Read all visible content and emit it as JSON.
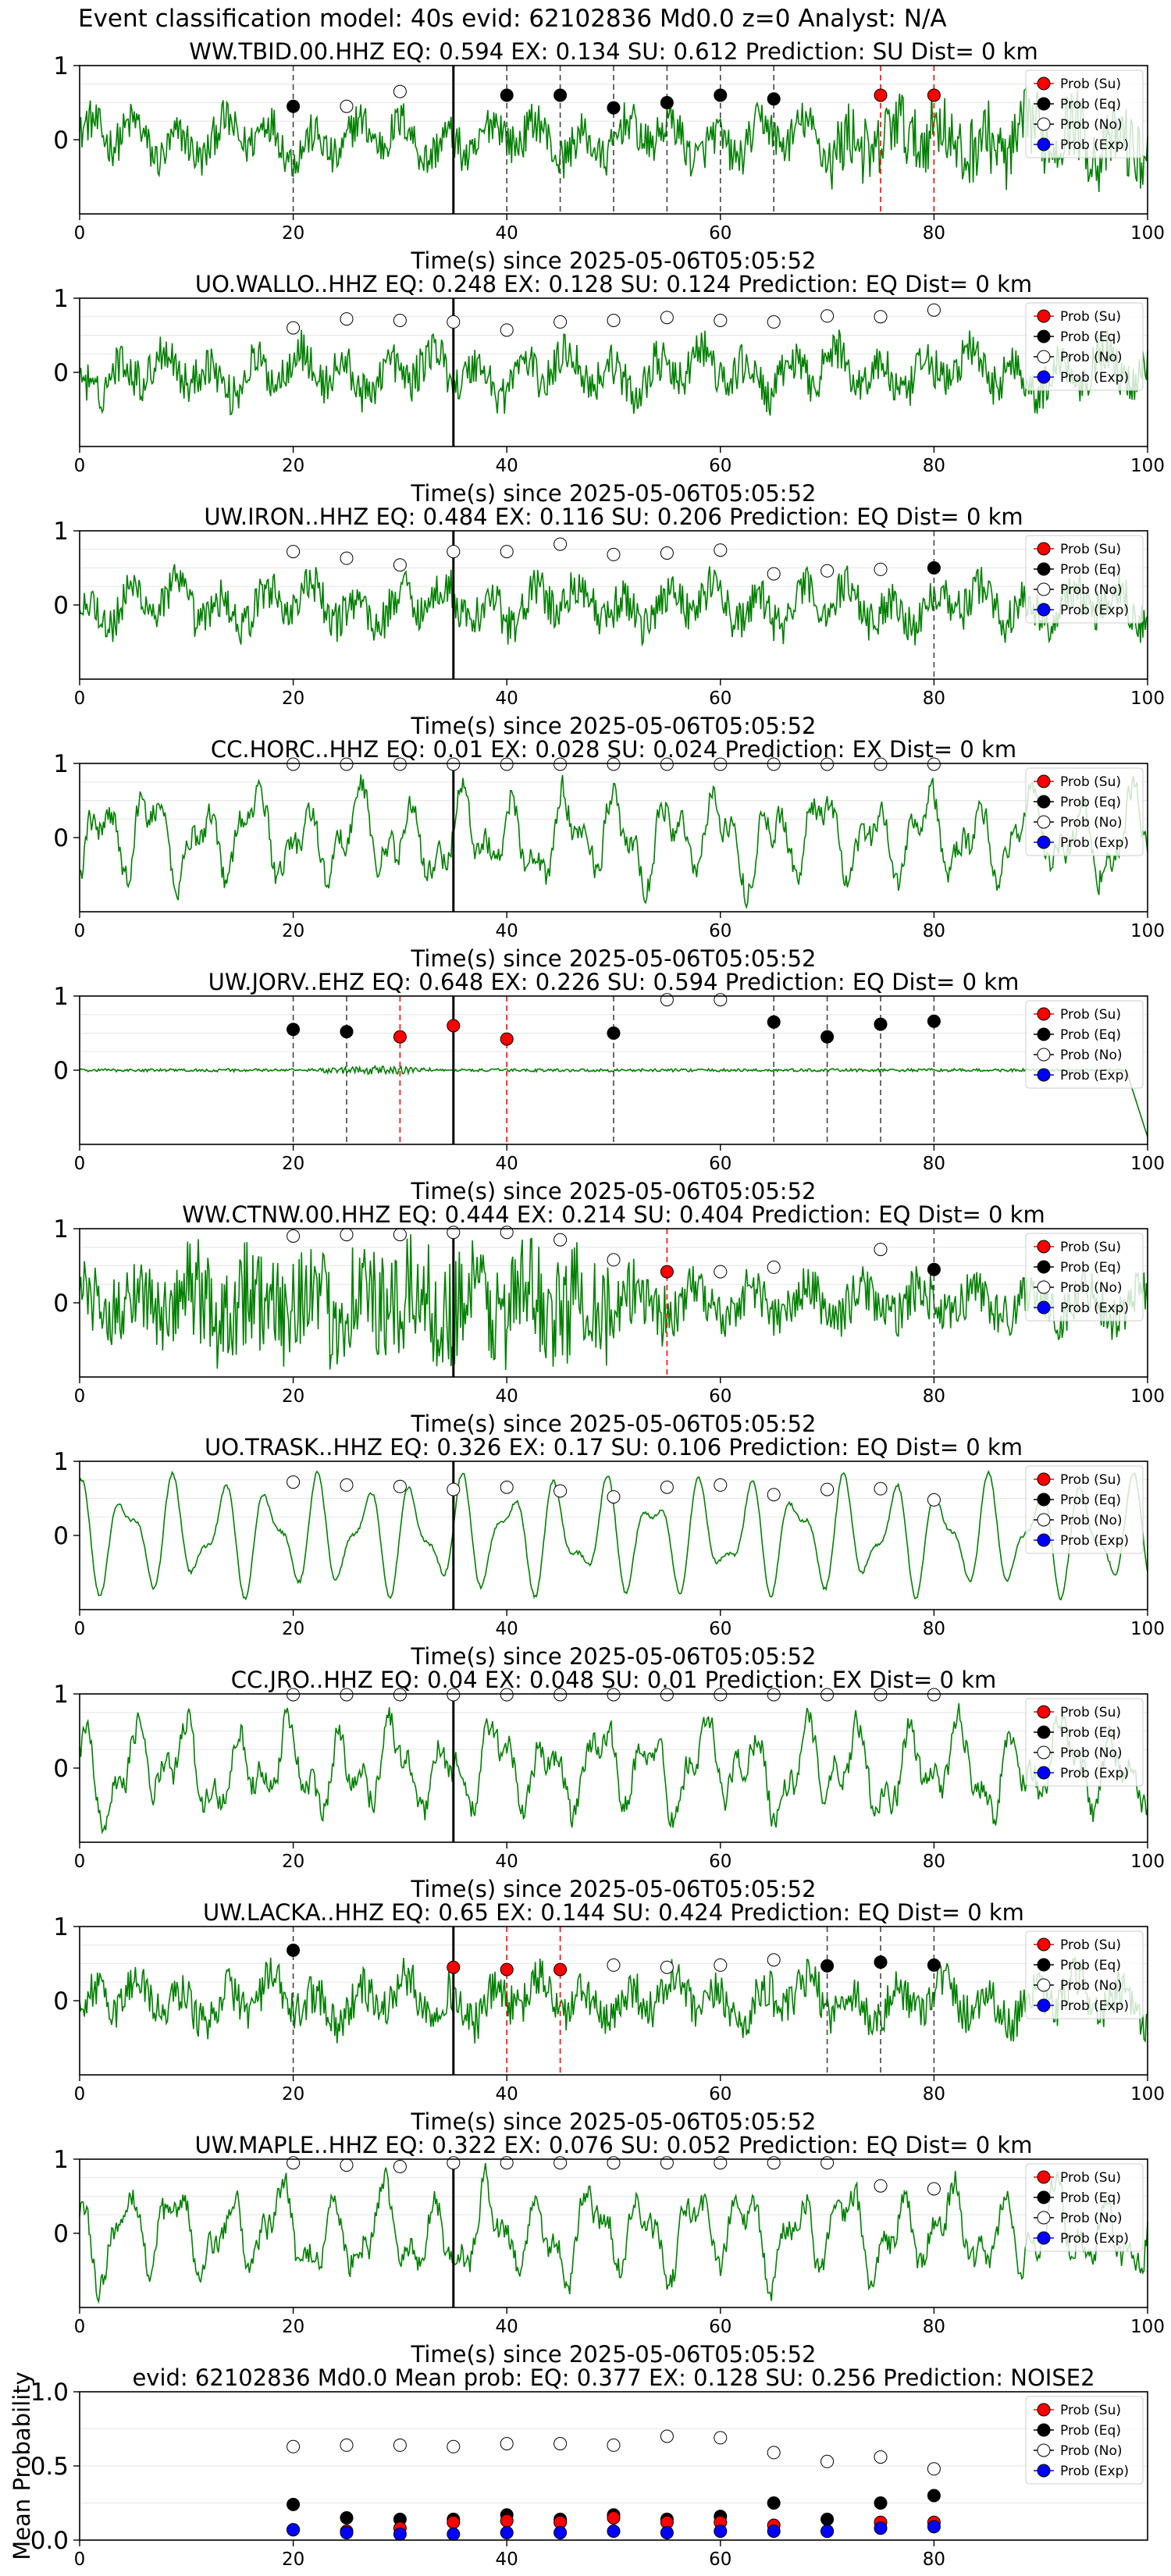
{
  "figure": {
    "title": "Event classification model: 40s evid: 62102836 Md0.0 z=0 Analyst: N/A",
    "xlabel": "Time(s) since 2025-05-06T05:05:52",
    "ylabel_mean": "Mean Probability",
    "legend": [
      "Prob (Su)",
      "Prob (Eq)",
      "Prob (No)",
      "Prob (Exp)"
    ],
    "colors": {
      "trace": "#008000",
      "su": "#ff0000",
      "eq": "#000000",
      "no": "#ffffff",
      "exp": "#0000ff",
      "pick": "#000000"
    }
  },
  "chart_data": [
    {
      "type": "line",
      "title": "WW.TBID.00.HHZ    EQ: 0.594   EX: 0.134   SU: 0.612    Prediction: SU     Dist= 0 km",
      "xlim": [
        0,
        100
      ],
      "ylim": [
        -1,
        1
      ],
      "xticks": [
        0,
        20,
        40,
        60,
        80,
        100
      ],
      "yticks": [
        0,
        1
      ],
      "pick_time": 35,
      "dots": [
        {
          "t": 20,
          "p": 0.45,
          "c": "eq"
        },
        {
          "t": 25,
          "p": 0.45,
          "c": "no"
        },
        {
          "t": 30,
          "p": 0.65,
          "c": "no"
        },
        {
          "t": 40,
          "p": 0.6,
          "c": "eq"
        },
        {
          "t": 45,
          "p": 0.6,
          "c": "eq"
        },
        {
          "t": 50,
          "p": 0.43,
          "c": "eq"
        },
        {
          "t": 55,
          "p": 0.5,
          "c": "eq"
        },
        {
          "t": 60,
          "p": 0.6,
          "c": "eq"
        },
        {
          "t": 65,
          "p": 0.55,
          "c": "eq"
        },
        {
          "t": 75,
          "p": 0.6,
          "c": "su"
        },
        {
          "t": 80,
          "p": 0.6,
          "c": "su"
        }
      ],
      "vlines": [
        {
          "t": 20,
          "c": "eq"
        },
        {
          "t": 40,
          "c": "eq"
        },
        {
          "t": 45,
          "c": "eq"
        },
        {
          "t": 50,
          "c": "eq"
        },
        {
          "t": 55,
          "c": "eq"
        },
        {
          "t": 60,
          "c": "eq"
        },
        {
          "t": 65,
          "c": "eq"
        },
        {
          "t": 75,
          "c": "su"
        },
        {
          "t": 80,
          "c": "su"
        }
      ]
    },
    {
      "type": "line",
      "title": "UO.WALLO..HHZ   EQ: 0.248   EX: 0.128   SU: 0.124    Prediction: EQ     Dist= 0 km",
      "xlim": [
        0,
        100
      ],
      "ylim": [
        -1,
        1
      ],
      "xticks": [
        0,
        20,
        40,
        60,
        80,
        100
      ],
      "yticks": [
        0,
        1
      ],
      "pick_time": 35,
      "dots": [
        {
          "t": 20,
          "p": 0.6,
          "c": "no"
        },
        {
          "t": 25,
          "p": 0.72,
          "c": "no"
        },
        {
          "t": 30,
          "p": 0.7,
          "c": "no"
        },
        {
          "t": 35,
          "p": 0.68,
          "c": "no"
        },
        {
          "t": 40,
          "p": 0.57,
          "c": "no"
        },
        {
          "t": 45,
          "p": 0.68,
          "c": "no"
        },
        {
          "t": 50,
          "p": 0.7,
          "c": "no"
        },
        {
          "t": 55,
          "p": 0.74,
          "c": "no"
        },
        {
          "t": 60,
          "p": 0.7,
          "c": "no"
        },
        {
          "t": 65,
          "p": 0.68,
          "c": "no"
        },
        {
          "t": 70,
          "p": 0.76,
          "c": "no"
        },
        {
          "t": 75,
          "p": 0.75,
          "c": "no"
        },
        {
          "t": 80,
          "p": 0.84,
          "c": "no"
        }
      ],
      "vlines": []
    },
    {
      "type": "line",
      "title": "UW.IRON..HHZ   EQ: 0.484   EX: 0.116   SU: 0.206    Prediction: EQ     Dist= 0 km",
      "xlim": [
        0,
        100
      ],
      "ylim": [
        -1,
        1
      ],
      "xticks": [
        0,
        20,
        40,
        60,
        80,
        100
      ],
      "yticks": [
        0,
        1
      ],
      "pick_time": 35,
      "dots": [
        {
          "t": 20,
          "p": 0.72,
          "c": "no"
        },
        {
          "t": 25,
          "p": 0.63,
          "c": "no"
        },
        {
          "t": 30,
          "p": 0.54,
          "c": "no"
        },
        {
          "t": 35,
          "p": 0.72,
          "c": "no"
        },
        {
          "t": 40,
          "p": 0.72,
          "c": "no"
        },
        {
          "t": 45,
          "p": 0.82,
          "c": "no"
        },
        {
          "t": 50,
          "p": 0.68,
          "c": "no"
        },
        {
          "t": 55,
          "p": 0.7,
          "c": "no"
        },
        {
          "t": 60,
          "p": 0.74,
          "c": "no"
        },
        {
          "t": 65,
          "p": 0.42,
          "c": "no"
        },
        {
          "t": 70,
          "p": 0.46,
          "c": "no"
        },
        {
          "t": 75,
          "p": 0.48,
          "c": "no"
        },
        {
          "t": 80,
          "p": 0.5,
          "c": "eq"
        }
      ],
      "vlines": [
        {
          "t": 80,
          "c": "eq"
        }
      ]
    },
    {
      "type": "line",
      "title": "CC.HORC..HHZ   EQ: 0.01  EX: 0.028  SU: 0.024    Prediction: EX     Dist= 0 km",
      "xlim": [
        0,
        100
      ],
      "ylim": [
        -1,
        1
      ],
      "xticks": [
        0,
        20,
        40,
        60,
        80,
        100
      ],
      "yticks": [
        0,
        1
      ],
      "pick_time": 35,
      "dots": [
        {
          "t": 20,
          "p": 0.99,
          "c": "no"
        },
        {
          "t": 25,
          "p": 0.99,
          "c": "no"
        },
        {
          "t": 30,
          "p": 0.99,
          "c": "no"
        },
        {
          "t": 35,
          "p": 0.99,
          "c": "no"
        },
        {
          "t": 40,
          "p": 0.99,
          "c": "no"
        },
        {
          "t": 45,
          "p": 0.99,
          "c": "no"
        },
        {
          "t": 50,
          "p": 0.99,
          "c": "no"
        },
        {
          "t": 55,
          "p": 0.99,
          "c": "no"
        },
        {
          "t": 60,
          "p": 0.99,
          "c": "no"
        },
        {
          "t": 65,
          "p": 0.99,
          "c": "no"
        },
        {
          "t": 70,
          "p": 0.99,
          "c": "no"
        },
        {
          "t": 75,
          "p": 0.99,
          "c": "no"
        },
        {
          "t": 80,
          "p": 0.99,
          "c": "no"
        }
      ],
      "vlines": []
    },
    {
      "type": "line",
      "title": "UW.JORV..EHZ   EQ: 0.648  EX: 0.226  SU: 0.594    Prediction: EQ     Dist= 0 km",
      "xlim": [
        0,
        100
      ],
      "ylim": [
        -1,
        1
      ],
      "xticks": [
        0,
        20,
        40,
        60,
        80,
        100
      ],
      "yticks": [
        0,
        1
      ],
      "pick_time": 35,
      "dots": [
        {
          "t": 20,
          "p": 0.55,
          "c": "eq"
        },
        {
          "t": 25,
          "p": 0.52,
          "c": "eq"
        },
        {
          "t": 30,
          "p": 0.45,
          "c": "su"
        },
        {
          "t": 35,
          "p": 0.6,
          "c": "su"
        },
        {
          "t": 40,
          "p": 0.42,
          "c": "su"
        },
        {
          "t": 50,
          "p": 0.5,
          "c": "eq"
        },
        {
          "t": 55,
          "p": 0.95,
          "c": "no"
        },
        {
          "t": 60,
          "p": 0.95,
          "c": "no"
        },
        {
          "t": 65,
          "p": 0.65,
          "c": "eq"
        },
        {
          "t": 70,
          "p": 0.45,
          "c": "eq"
        },
        {
          "t": 75,
          "p": 0.62,
          "c": "eq"
        },
        {
          "t": 80,
          "p": 0.66,
          "c": "eq"
        }
      ],
      "vlines": [
        {
          "t": 20,
          "c": "eq"
        },
        {
          "t": 25,
          "c": "eq"
        },
        {
          "t": 30,
          "c": "su"
        },
        {
          "t": 40,
          "c": "su"
        },
        {
          "t": 50,
          "c": "eq"
        },
        {
          "t": 65,
          "c": "eq"
        },
        {
          "t": 70,
          "c": "eq"
        },
        {
          "t": 75,
          "c": "eq"
        },
        {
          "t": 80,
          "c": "eq"
        }
      ]
    },
    {
      "type": "line",
      "title": "WW.CTNW.00.HHZ   EQ: 0.444  EX: 0.214  SU: 0.404    Prediction: EQ     Dist= 0 km",
      "xlim": [
        0,
        100
      ],
      "ylim": [
        -1,
        1
      ],
      "xticks": [
        0,
        20,
        40,
        60,
        80,
        100
      ],
      "yticks": [
        0,
        1
      ],
      "pick_time": 35,
      "dots": [
        {
          "t": 20,
          "p": 0.9,
          "c": "no"
        },
        {
          "t": 25,
          "p": 0.92,
          "c": "no"
        },
        {
          "t": 30,
          "p": 0.92,
          "c": "no"
        },
        {
          "t": 35,
          "p": 0.95,
          "c": "no"
        },
        {
          "t": 40,
          "p": 0.95,
          "c": "no"
        },
        {
          "t": 45,
          "p": 0.85,
          "c": "no"
        },
        {
          "t": 50,
          "p": 0.58,
          "c": "no"
        },
        {
          "t": 55,
          "p": 0.42,
          "c": "su"
        },
        {
          "t": 60,
          "p": 0.42,
          "c": "no"
        },
        {
          "t": 65,
          "p": 0.48,
          "c": "no"
        },
        {
          "t": 75,
          "p": 0.72,
          "c": "no"
        },
        {
          "t": 80,
          "p": 0.45,
          "c": "eq"
        }
      ],
      "vlines": [
        {
          "t": 55,
          "c": "su"
        },
        {
          "t": 80,
          "c": "eq"
        }
      ]
    },
    {
      "type": "line",
      "title": "UO.TRASK..HHZ   EQ: 0.326  EX: 0.17  SU: 0.106    Prediction: EQ     Dist= 0 km",
      "xlim": [
        0,
        100
      ],
      "ylim": [
        -1,
        1
      ],
      "xticks": [
        0,
        20,
        40,
        60,
        80,
        100
      ],
      "yticks": [
        0,
        1
      ],
      "pick_time": 35,
      "dots": [
        {
          "t": 20,
          "p": 0.72,
          "c": "no"
        },
        {
          "t": 25,
          "p": 0.68,
          "c": "no"
        },
        {
          "t": 30,
          "p": 0.66,
          "c": "no"
        },
        {
          "t": 35,
          "p": 0.62,
          "c": "no"
        },
        {
          "t": 40,
          "p": 0.65,
          "c": "no"
        },
        {
          "t": 45,
          "p": 0.6,
          "c": "no"
        },
        {
          "t": 50,
          "p": 0.52,
          "c": "no"
        },
        {
          "t": 55,
          "p": 0.65,
          "c": "no"
        },
        {
          "t": 60,
          "p": 0.68,
          "c": "no"
        },
        {
          "t": 65,
          "p": 0.55,
          "c": "no"
        },
        {
          "t": 70,
          "p": 0.62,
          "c": "no"
        },
        {
          "t": 75,
          "p": 0.63,
          "c": "no"
        },
        {
          "t": 80,
          "p": 0.48,
          "c": "no"
        }
      ],
      "vlines": []
    },
    {
      "type": "line",
      "title": "CC.JRO..HHZ   EQ: 0.04  EX: 0.048  SU: 0.01    Prediction: EX     Dist= 0 km",
      "xlim": [
        0,
        100
      ],
      "ylim": [
        -1,
        1
      ],
      "xticks": [
        0,
        20,
        40,
        60,
        80,
        100
      ],
      "yticks": [
        0,
        1
      ],
      "pick_time": 35,
      "dots": [
        {
          "t": 20,
          "p": 0.99,
          "c": "no"
        },
        {
          "t": 25,
          "p": 0.99,
          "c": "no"
        },
        {
          "t": 30,
          "p": 0.99,
          "c": "no"
        },
        {
          "t": 35,
          "p": 0.99,
          "c": "no"
        },
        {
          "t": 40,
          "p": 0.99,
          "c": "no"
        },
        {
          "t": 45,
          "p": 0.99,
          "c": "no"
        },
        {
          "t": 50,
          "p": 0.99,
          "c": "no"
        },
        {
          "t": 55,
          "p": 0.99,
          "c": "no"
        },
        {
          "t": 60,
          "p": 0.99,
          "c": "no"
        },
        {
          "t": 65,
          "p": 0.99,
          "c": "no"
        },
        {
          "t": 70,
          "p": 0.99,
          "c": "no"
        },
        {
          "t": 75,
          "p": 0.99,
          "c": "no"
        },
        {
          "t": 80,
          "p": 0.99,
          "c": "no"
        }
      ],
      "vlines": []
    },
    {
      "type": "line",
      "title": "UW.LACKA..HHZ   EQ: 0.65  EX: 0.144  SU: 0.424    Prediction: EQ     Dist= 0 km",
      "xlim": [
        0,
        100
      ],
      "ylim": [
        -1,
        1
      ],
      "xticks": [
        0,
        20,
        40,
        60,
        80,
        100
      ],
      "yticks": [
        0,
        1
      ],
      "pick_time": 35,
      "dots": [
        {
          "t": 20,
          "p": 0.68,
          "c": "eq"
        },
        {
          "t": 35,
          "p": 0.45,
          "c": "su"
        },
        {
          "t": 40,
          "p": 0.42,
          "c": "su"
        },
        {
          "t": 45,
          "p": 0.42,
          "c": "su"
        },
        {
          "t": 50,
          "p": 0.48,
          "c": "no"
        },
        {
          "t": 55,
          "p": 0.45,
          "c": "no"
        },
        {
          "t": 60,
          "p": 0.48,
          "c": "no"
        },
        {
          "t": 65,
          "p": 0.55,
          "c": "no"
        },
        {
          "t": 70,
          "p": 0.47,
          "c": "eq"
        },
        {
          "t": 75,
          "p": 0.52,
          "c": "eq"
        },
        {
          "t": 80,
          "p": 0.48,
          "c": "eq"
        }
      ],
      "vlines": [
        {
          "t": 20,
          "c": "eq"
        },
        {
          "t": 40,
          "c": "su"
        },
        {
          "t": 45,
          "c": "su"
        },
        {
          "t": 70,
          "c": "eq"
        },
        {
          "t": 75,
          "c": "eq"
        },
        {
          "t": 80,
          "c": "eq"
        }
      ]
    },
    {
      "type": "line",
      "title": "UW.MAPLE..HHZ   EQ: 0.322  EX: 0.076  SU: 0.052    Prediction: EQ     Dist= 0 km",
      "xlim": [
        0,
        100
      ],
      "ylim": [
        -1,
        1
      ],
      "xticks": [
        0,
        20,
        40,
        60,
        80,
        100
      ],
      "yticks": [
        0,
        1
      ],
      "pick_time": 35,
      "dots": [
        {
          "t": 20,
          "p": 0.95,
          "c": "no"
        },
        {
          "t": 25,
          "p": 0.92,
          "c": "no"
        },
        {
          "t": 30,
          "p": 0.9,
          "c": "no"
        },
        {
          "t": 35,
          "p": 0.95,
          "c": "no"
        },
        {
          "t": 40,
          "p": 0.95,
          "c": "no"
        },
        {
          "t": 45,
          "p": 0.95,
          "c": "no"
        },
        {
          "t": 50,
          "p": 0.95,
          "c": "no"
        },
        {
          "t": 55,
          "p": 0.95,
          "c": "no"
        },
        {
          "t": 60,
          "p": 0.95,
          "c": "no"
        },
        {
          "t": 65,
          "p": 0.95,
          "c": "no"
        },
        {
          "t": 70,
          "p": 0.95,
          "c": "no"
        },
        {
          "t": 75,
          "p": 0.64,
          "c": "no"
        },
        {
          "t": 80,
          "p": 0.6,
          "c": "no"
        }
      ],
      "vlines": []
    },
    {
      "type": "scatter",
      "title": "evid: 62102836  Md0.0   Mean prob:   EQ: 0.377  EX: 0.128  SU: 0.256   Prediction: NOISE2",
      "xlim": [
        0,
        100
      ],
      "ylim": [
        0,
        1
      ],
      "xticks": [
        0,
        20,
        40,
        60,
        80
      ],
      "yticks": [
        0.0,
        0.5,
        1.0
      ],
      "ylabel": "Mean Probability",
      "x": [
        20,
        25,
        30,
        35,
        40,
        45,
        50,
        55,
        60,
        65,
        70,
        75,
        80
      ],
      "series": [
        {
          "name": "Prob (No)",
          "c": "no",
          "values": [
            0.63,
            0.64,
            0.64,
            0.63,
            0.65,
            0.65,
            0.64,
            0.7,
            0.69,
            0.59,
            0.53,
            0.56,
            0.48
          ]
        },
        {
          "name": "Prob (Eq)",
          "c": "eq",
          "values": [
            0.24,
            0.15,
            0.14,
            0.14,
            0.17,
            0.14,
            0.17,
            0.14,
            0.16,
            0.25,
            0.14,
            0.25,
            0.3
          ]
        },
        {
          "name": "Prob (Su)",
          "c": "su",
          "values": [
            0.07,
            0.06,
            0.08,
            0.12,
            0.13,
            0.12,
            0.15,
            0.12,
            0.12,
            0.1,
            0.06,
            0.12,
            0.12
          ]
        },
        {
          "name": "Prob (Exp)",
          "c": "exp",
          "values": [
            0.07,
            0.05,
            0.04,
            0.04,
            0.05,
            0.05,
            0.06,
            0.05,
            0.06,
            0.06,
            0.06,
            0.08,
            0.09
          ]
        }
      ]
    }
  ]
}
